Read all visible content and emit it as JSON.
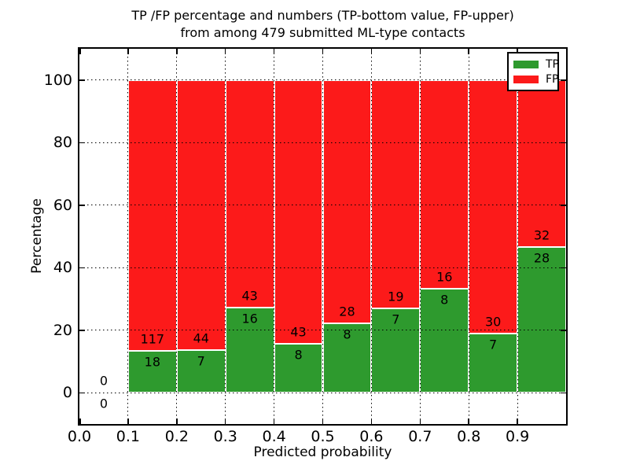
{
  "chart_data": {
    "type": "bar",
    "stacked": true,
    "note": "each non-empty bar stacks to 100%; numbers printed are raw counts (TP below boundary, FP above)",
    "title": "TP /FP percentage and numbers (TP-bottom value, FP-upper)\nfrom among 479 submitted ML-type contacts",
    "title_line1": "TP /FP percentage and numbers (TP-bottom value, FP-upper)",
    "title_line2": "from among 479 submitted ML-type contacts",
    "xlabel": "Predicted probability",
    "ylabel": "Percentage",
    "total_contacts": 479,
    "xlim": [
      0.0,
      1.0
    ],
    "ylim": [
      -10,
      110
    ],
    "bin_edges": [
      0.0,
      0.1,
      0.2,
      0.3,
      0.4,
      0.5,
      0.6,
      0.7,
      0.8,
      0.9,
      1.0
    ],
    "series": [
      {
        "name": "TP",
        "color": "#2E9A2E",
        "counts": [
          0,
          18,
          7,
          16,
          8,
          8,
          7,
          8,
          7,
          28
        ]
      },
      {
        "name": "FP",
        "color": "#FC1A1A",
        "counts": [
          0,
          117,
          44,
          43,
          43,
          28,
          19,
          16,
          30,
          32
        ]
      }
    ],
    "tp_percent_per_bin": [
      0,
      13.33,
      13.73,
      27.12,
      15.69,
      22.22,
      26.92,
      33.33,
      18.92,
      46.67
    ],
    "xticks": [
      {
        "v": 0.0,
        "label": "0.0"
      },
      {
        "v": 0.1,
        "label": "0.1"
      },
      {
        "v": 0.2,
        "label": "0.2"
      },
      {
        "v": 0.3,
        "label": "0.3"
      },
      {
        "v": 0.4,
        "label": "0.4"
      },
      {
        "v": 0.5,
        "label": "0.5"
      },
      {
        "v": 0.6,
        "label": "0.6"
      },
      {
        "v": 0.7,
        "label": "0.7"
      },
      {
        "v": 0.8,
        "label": "0.8"
      },
      {
        "v": 0.9,
        "label": "0.9"
      }
    ],
    "yticks": [
      {
        "v": 0,
        "label": "0"
      },
      {
        "v": 20,
        "label": "20"
      },
      {
        "v": 40,
        "label": "40"
      },
      {
        "v": 60,
        "label": "60"
      },
      {
        "v": 80,
        "label": "80"
      },
      {
        "v": 100,
        "label": "100"
      }
    ],
    "grid": {
      "style": "dotted",
      "color": "#000000",
      "x": true,
      "y": true
    },
    "legend": {
      "position": "upper right",
      "entries": [
        {
          "label": "TP",
          "color": "#2E9A2E"
        },
        {
          "label": "FP",
          "color": "#FC1A1A"
        }
      ]
    },
    "background": "#ffffff",
    "bar_edge_color": "#ffffff"
  }
}
